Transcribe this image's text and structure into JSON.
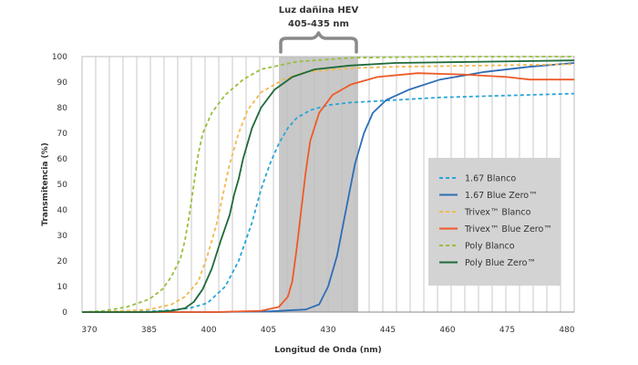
{
  "chart_data": {
    "type": "line",
    "xlabel": "Longitud de Onda (nm)",
    "ylabel": "Transmitencia (%)",
    "xlim": [
      370,
      480
    ],
    "ylim": [
      0,
      100
    ],
    "x_ticks": [
      "370",
      "385",
      "400",
      "405",
      "430",
      "445",
      "460",
      "475",
      "480"
    ],
    "y_ticks": [
      "0",
      "10",
      "20",
      "30",
      "40",
      "50",
      "60",
      "70",
      "80",
      "90",
      "100"
    ],
    "grid": "vertical",
    "highlight_band": {
      "title": "Luz dañina HEV",
      "range_label": "405-435 nm"
    },
    "legend_position": "right",
    "series": [
      {
        "name": "1.67 Blanco",
        "color": "#2aa4d8",
        "dashed": true,
        "points": [
          [
            370,
            0
          ],
          [
            380,
            0
          ],
          [
            388,
            0.5
          ],
          [
            394,
            1.5
          ],
          [
            398,
            3.5
          ],
          [
            402,
            10
          ],
          [
            405,
            20
          ],
          [
            408,
            35
          ],
          [
            410,
            48
          ],
          [
            412,
            58
          ],
          [
            414,
            66
          ],
          [
            416,
            72
          ],
          [
            418,
            76
          ],
          [
            421,
            79
          ],
          [
            425,
            81
          ],
          [
            430,
            82
          ],
          [
            440,
            83
          ],
          [
            450,
            84
          ],
          [
            460,
            84.5
          ],
          [
            470,
            85
          ],
          [
            480,
            85.5
          ]
        ]
      },
      {
        "name": "1.67 Blue Zero™",
        "color": "#2f6db6",
        "dashed": false,
        "points": [
          [
            370,
            0
          ],
          [
            400,
            0
          ],
          [
            412,
            0.3
          ],
          [
            420,
            1
          ],
          [
            423,
            3
          ],
          [
            425,
            10
          ],
          [
            427,
            22
          ],
          [
            429,
            40
          ],
          [
            431,
            58
          ],
          [
            433,
            70
          ],
          [
            435,
            78
          ],
          [
            438,
            83
          ],
          [
            443,
            87
          ],
          [
            450,
            91
          ],
          [
            460,
            94
          ],
          [
            470,
            96
          ],
          [
            480,
            97.5
          ]
        ]
      },
      {
        "name": "Trivex™ Blanco",
        "color": "#f2b950",
        "dashed": true,
        "points": [
          [
            370,
            0
          ],
          [
            380,
            0.5
          ],
          [
            385,
            1
          ],
          [
            390,
            3
          ],
          [
            393,
            6
          ],
          [
            396,
            12
          ],
          [
            398,
            22
          ],
          [
            400,
            34
          ],
          [
            401,
            42
          ],
          [
            403,
            58
          ],
          [
            405,
            70
          ],
          [
            407,
            79
          ],
          [
            410,
            86
          ],
          [
            415,
            91
          ],
          [
            420,
            94
          ],
          [
            430,
            95.5
          ],
          [
            440,
            96
          ],
          [
            460,
            96.5
          ],
          [
            480,
            97
          ]
        ]
      },
      {
        "name": "Trivex™ Blue Zero™",
        "color": "#ef5a28",
        "dashed": false,
        "points": [
          [
            370,
            0
          ],
          [
            400,
            0
          ],
          [
            410,
            0.5
          ],
          [
            414,
            2
          ],
          [
            416,
            6
          ],
          [
            417,
            12
          ],
          [
            418,
            25
          ],
          [
            419,
            40
          ],
          [
            420,
            55
          ],
          [
            421,
            67
          ],
          [
            423,
            78
          ],
          [
            426,
            85
          ],
          [
            430,
            89
          ],
          [
            436,
            92
          ],
          [
            445,
            93.5
          ],
          [
            455,
            93
          ],
          [
            465,
            92
          ],
          [
            470,
            91
          ],
          [
            475,
            91
          ],
          [
            480,
            91
          ]
        ]
      },
      {
        "name": "Poly Blanco",
        "color": "#98bf3c",
        "dashed": true,
        "points": [
          [
            370,
            0
          ],
          [
            375,
            0.5
          ],
          [
            380,
            2
          ],
          [
            385,
            5
          ],
          [
            388,
            9
          ],
          [
            390,
            14
          ],
          [
            392,
            21
          ],
          [
            393,
            28
          ],
          [
            394,
            38
          ],
          [
            395,
            50
          ],
          [
            396,
            62
          ],
          [
            397,
            70
          ],
          [
            399,
            78
          ],
          [
            402,
            85
          ],
          [
            406,
            91
          ],
          [
            410,
            95
          ],
          [
            418,
            98
          ],
          [
            430,
            99.5
          ],
          [
            450,
            100
          ],
          [
            480,
            100
          ]
        ]
      },
      {
        "name": "Poly Blue Zero™",
        "color": "#1e6a3a",
        "dashed": false,
        "points": [
          [
            370,
            0
          ],
          [
            385,
            0
          ],
          [
            390,
            0.5
          ],
          [
            393,
            1.5
          ],
          [
            395,
            4
          ],
          [
            397,
            9
          ],
          [
            399,
            17
          ],
          [
            401,
            28
          ],
          [
            403,
            38
          ],
          [
            404,
            46
          ],
          [
            405,
            52
          ],
          [
            406,
            60
          ],
          [
            408,
            72
          ],
          [
            410,
            80
          ],
          [
            413,
            87
          ],
          [
            417,
            92
          ],
          [
            422,
            95
          ],
          [
            430,
            96.5
          ],
          [
            440,
            97.5
          ],
          [
            460,
            98
          ],
          [
            480,
            98.5
          ]
        ]
      }
    ]
  }
}
